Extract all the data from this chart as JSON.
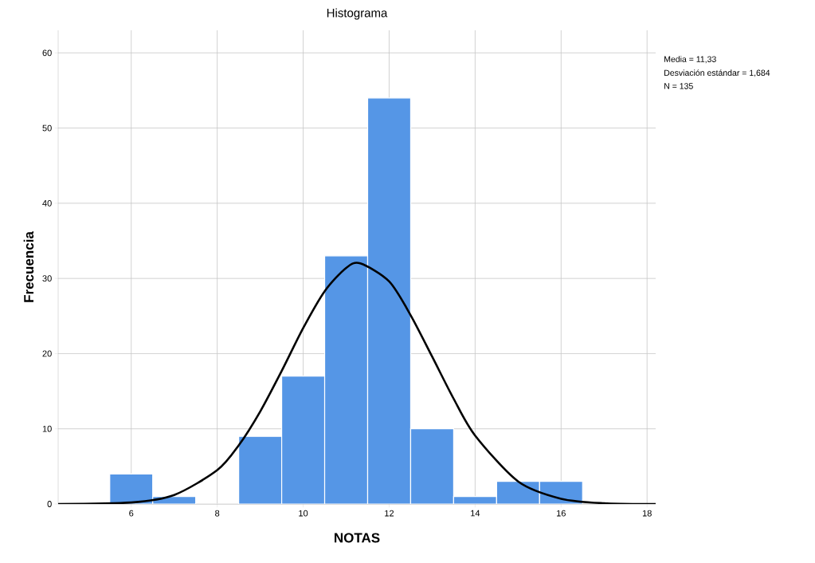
{
  "chart_data": {
    "type": "histogram",
    "title": "Histograma",
    "xlabel": "NOTAS",
    "ylabel": "Frecuencia",
    "annotations": [
      "Media = 11,33",
      "Desviación estándar = 1,684",
      "N = 135"
    ],
    "series": [
      {
        "type": "histogram",
        "color": "#5596e6",
        "bins": [
          5.5,
          6.5,
          7.5,
          8.5,
          9.5,
          10.5,
          11.5,
          12.5,
          13.5,
          14.5,
          15.5,
          16.5
        ],
        "values": [
          4,
          1,
          0,
          9,
          17,
          33,
          54,
          10,
          1,
          3,
          3
        ]
      },
      {
        "type": "line",
        "color": "#000000",
        "x": [
          4.3,
          6,
          7,
          8,
          8.5,
          9,
          9.5,
          10,
          10.5,
          11,
          11.33,
          12,
          12.5,
          13,
          13.5,
          14,
          15,
          16,
          17,
          18.2
        ],
        "values": [
          0,
          0.2,
          1.2,
          4.5,
          7.8,
          12.3,
          17.7,
          23.4,
          28.3,
          31.4,
          32,
          29.6,
          25.1,
          19.6,
          14,
          9.1,
          3,
          0.7,
          0.1,
          0
        ]
      }
    ],
    "xlim": [
      4.3,
      18.2
    ],
    "ylim": [
      0,
      63
    ],
    "xticks": [
      6,
      8,
      10,
      12,
      14,
      16,
      18
    ],
    "yticks": [
      0,
      10,
      20,
      30,
      40,
      50,
      60
    ],
    "grid": true,
    "marker": "none",
    "line_style": "solid"
  }
}
